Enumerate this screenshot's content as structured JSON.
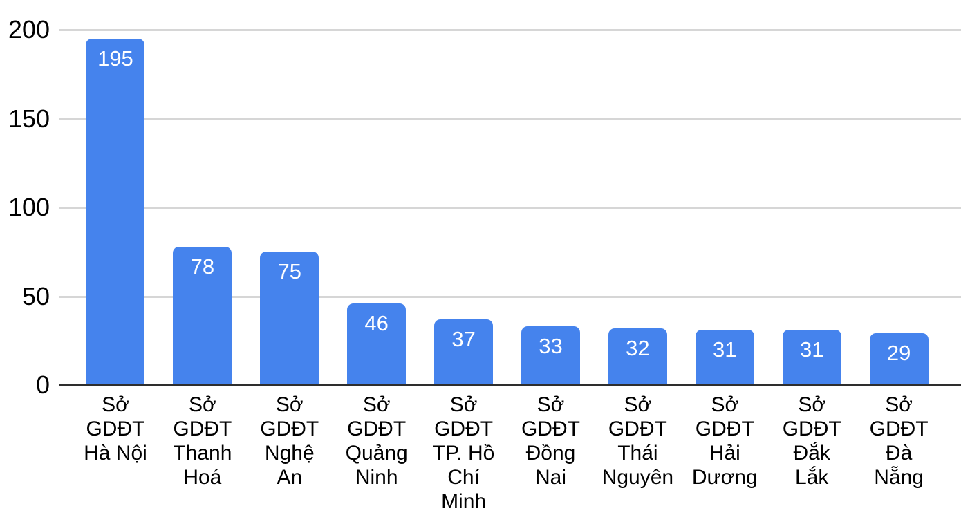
{
  "chart_data": {
    "type": "bar",
    "categories": [
      "Sở GDĐT Hà Nội",
      "Sở GDĐT Thanh Hoá",
      "Sở GDĐT Nghệ An",
      "Sở GDĐT Quảng Ninh",
      "Sở GDĐT TP. Hồ Chí Minh",
      "Sở GDĐT Đồng Nai",
      "Sở GDĐT Thái Nguyên",
      "Sở GDĐT Hải Dương",
      "Sở GDĐT Đắk Lắk",
      "Sở GDĐT Đà Nẵng"
    ],
    "category_label_lines": [
      "Sở\nGDĐT\nHà Nội",
      "Sở\nGDĐT\nThanh\nHoá",
      "Sở\nGDĐT\nNghệ\nAn",
      "Sở\nGDĐT\nQuảng\nNinh",
      "Sở\nGDĐT\nTP. Hồ\nChí\nMinh",
      "Sở\nGDĐT\nĐồng\nNai",
      "Sở\nGDĐT\nThái\nNguyên",
      "Sở\nGDĐT\nHải\nDương",
      "Sở\nGDĐT\nĐắk\nLắk",
      "Sở\nGDĐT\nĐà\nNẵng"
    ],
    "values": [
      195,
      78,
      75,
      46,
      37,
      33,
      32,
      31,
      31,
      29
    ],
    "value_labels": [
      "195",
      "78",
      "75",
      "46",
      "37",
      "33",
      "32",
      "31",
      "31",
      "29"
    ],
    "yticks": [
      0,
      50,
      100,
      150,
      200
    ],
    "ylim": [
      0,
      200
    ],
    "grid": true,
    "legend": "none",
    "bar_color": "#4583ed",
    "value_label_color": "#ffffff",
    "grid_color": "#d6d6d6",
    "baseline_color": "#2e2e2e",
    "axis_text_color": "#000000"
  }
}
